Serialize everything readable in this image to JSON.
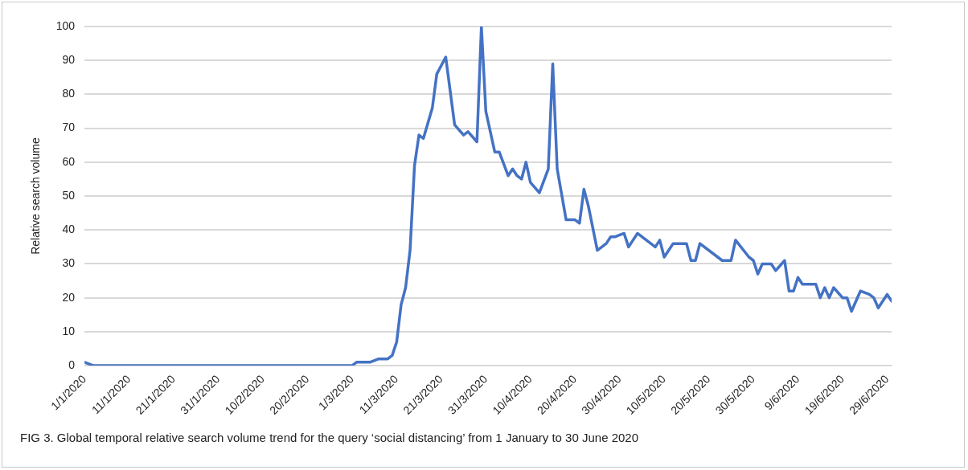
{
  "chart_data": {
    "type": "line",
    "ylabel": "Relative search volume",
    "annotations": [
      "FIG 3.  Global temporal relative search volume trend for the query ‘social distancing’ from 1 January to 30 June 2020"
    ],
    "xlim": [
      "2020-01-01",
      "2020-06-30"
    ],
    "xticks": [
      {
        "value": "2020-01-01",
        "label": "1/1/2020"
      },
      {
        "value": "2020-01-11",
        "label": "11/1/2020"
      },
      {
        "value": "2020-01-21",
        "label": "21/1/2020"
      },
      {
        "value": "2020-01-31",
        "label": "31/1/2020"
      },
      {
        "value": "2020-02-10",
        "label": "10/2/2020"
      },
      {
        "value": "2020-02-20",
        "label": "20/2/2020"
      },
      {
        "value": "2020-03-01",
        "label": "1/3/2020"
      },
      {
        "value": "2020-03-11",
        "label": "11/3/2020"
      },
      {
        "value": "2020-03-21",
        "label": "21/3/2020"
      },
      {
        "value": "2020-03-31",
        "label": "31/3/2020"
      },
      {
        "value": "2020-04-10",
        "label": "10/4/2020"
      },
      {
        "value": "2020-04-20",
        "label": "20/4/2020"
      },
      {
        "value": "2020-04-30",
        "label": "30/4/2020"
      },
      {
        "value": "2020-05-10",
        "label": "10/5/2020"
      },
      {
        "value": "2020-05-20",
        "label": "20/5/2020"
      },
      {
        "value": "2020-05-30",
        "label": "30/5/2020"
      },
      {
        "value": "2020-06-09",
        "label": "9/6/2020"
      },
      {
        "value": "2020-06-19",
        "label": "19/6/2020"
      },
      {
        "value": "2020-06-29",
        "label": "29/6/2020"
      }
    ],
    "ylim": [
      0,
      100
    ],
    "yticks": [
      0,
      10,
      20,
      30,
      40,
      50,
      60,
      70,
      80,
      90,
      100
    ],
    "grid": "y",
    "legend": false,
    "marker": "none",
    "line_style": "solid",
    "x": [
      "2020-01-01",
      "2020-01-03",
      "2020-01-10",
      "2020-01-12",
      "2020-01-20",
      "2020-01-31",
      "2020-02-10",
      "2020-02-20",
      "2020-02-29",
      "2020-03-01",
      "2020-03-02",
      "2020-03-05",
      "2020-03-07",
      "2020-03-09",
      "2020-03-10",
      "2020-03-11",
      "2020-03-12",
      "2020-03-13",
      "2020-03-14",
      "2020-03-15",
      "2020-03-16",
      "2020-03-17",
      "2020-03-19",
      "2020-03-20",
      "2020-03-22",
      "2020-03-24",
      "2020-03-26",
      "2020-03-27",
      "2020-03-29",
      "2020-03-30",
      "2020-03-31",
      "2020-04-02",
      "2020-04-03",
      "2020-04-05",
      "2020-04-06",
      "2020-04-07",
      "2020-04-08",
      "2020-04-09",
      "2020-04-10",
      "2020-04-12",
      "2020-04-14",
      "2020-04-15",
      "2020-04-16",
      "2020-04-18",
      "2020-04-20",
      "2020-04-21",
      "2020-04-22",
      "2020-04-23",
      "2020-04-25",
      "2020-04-27",
      "2020-04-28",
      "2020-04-29",
      "2020-05-01",
      "2020-05-02",
      "2020-05-04",
      "2020-05-06",
      "2020-05-08",
      "2020-05-09",
      "2020-05-10",
      "2020-05-12",
      "2020-05-15",
      "2020-05-16",
      "2020-05-17",
      "2020-05-18",
      "2020-05-22",
      "2020-05-23",
      "2020-05-25",
      "2020-05-26",
      "2020-05-29",
      "2020-05-30",
      "2020-05-31",
      "2020-06-01",
      "2020-06-03",
      "2020-06-04",
      "2020-06-06",
      "2020-06-07",
      "2020-06-08",
      "2020-06-09",
      "2020-06-10",
      "2020-06-12",
      "2020-06-13",
      "2020-06-14",
      "2020-06-15",
      "2020-06-16",
      "2020-06-17",
      "2020-06-19",
      "2020-06-20",
      "2020-06-21",
      "2020-06-23",
      "2020-06-25",
      "2020-06-26",
      "2020-06-27",
      "2020-06-29",
      "2020-06-30"
    ],
    "series": [
      {
        "color": "#4472c4",
        "values": [
          1,
          0,
          0,
          0,
          0,
          0,
          0,
          0,
          0,
          0,
          1,
          1,
          2,
          2,
          3,
          7,
          18,
          23,
          34,
          59,
          68,
          67,
          76,
          86,
          91,
          71,
          68,
          69,
          66,
          100,
          75,
          63,
          63,
          56,
          58,
          56,
          55,
          60,
          54,
          51,
          58,
          89,
          58,
          43,
          43,
          42,
          52,
          47,
          34,
          36,
          38,
          38,
          39,
          35,
          39,
          37,
          35,
          37,
          32,
          36,
          36,
          31,
          31,
          36,
          32,
          31,
          31,
          37,
          32,
          31,
          27,
          30,
          30,
          28,
          31,
          22,
          22,
          26,
          24,
          24,
          24,
          20,
          23,
          20,
          23,
          20,
          20,
          16,
          22,
          21,
          20,
          17,
          21,
          19
        ]
      }
    ]
  }
}
